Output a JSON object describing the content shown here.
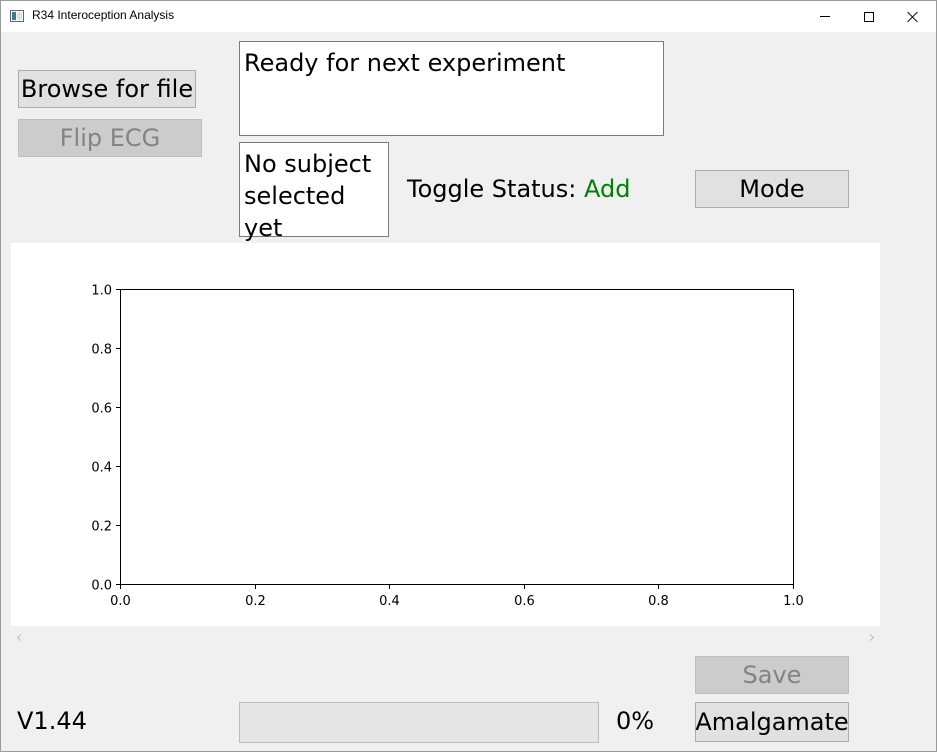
{
  "window": {
    "title": "R34 Interoception Analysis"
  },
  "controls": {
    "browse_label": "Browse for file",
    "flip_ecg_label": "Flip ECG",
    "mode_label": "Mode",
    "save_label": "Save",
    "amalgamate_label": "Amalgamate"
  },
  "status": {
    "message": "Ready for next experiment",
    "subject_line1": "No subject",
    "subject_line2": "selected yet",
    "toggle_label": "Toggle Status:",
    "toggle_value": "Add",
    "toggle_color": "#008000"
  },
  "footer": {
    "version": "V1.44",
    "progress_percent": 0,
    "progress_text": "0%"
  },
  "chart_data": {
    "type": "line",
    "title": "",
    "xlabel": "",
    "ylabel": "",
    "xlim": [
      0.0,
      1.0
    ],
    "ylim": [
      0.0,
      1.0
    ],
    "xticks": [
      "0.0",
      "0.2",
      "0.4",
      "0.6",
      "0.8",
      "1.0"
    ],
    "yticks": [
      "0.0",
      "0.2",
      "0.4",
      "0.6",
      "0.8",
      "1.0"
    ],
    "series": [],
    "grid": false
  }
}
